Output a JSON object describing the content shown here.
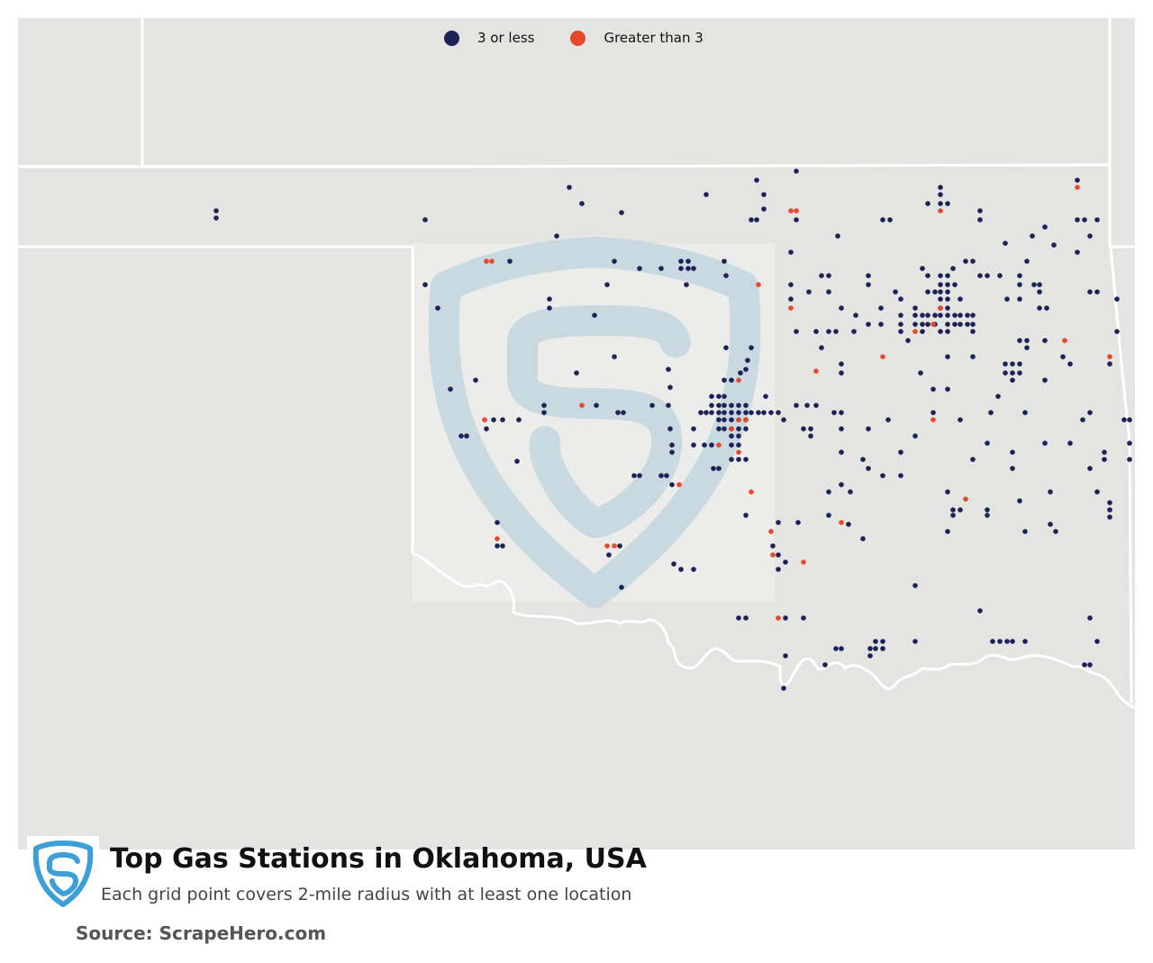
{
  "title": "Top Gas Stations in Oklahoma, USA",
  "subtitle": "Each grid point covers 2-mile radius with at least one location",
  "source": "Source: ScrapeHero.com",
  "legend": {
    "low": {
      "label": "3 or less",
      "color": "#1c2257"
    },
    "high": {
      "label": "Greater than 3",
      "color": "#e5492a"
    }
  },
  "colors": {
    "background": "#e4e4e2",
    "border": "#ffffff",
    "watermark": "#c7d8e0",
    "logo": "#3d9fd8"
  },
  "logo_icon": "scrapehero-shield-logo"
}
